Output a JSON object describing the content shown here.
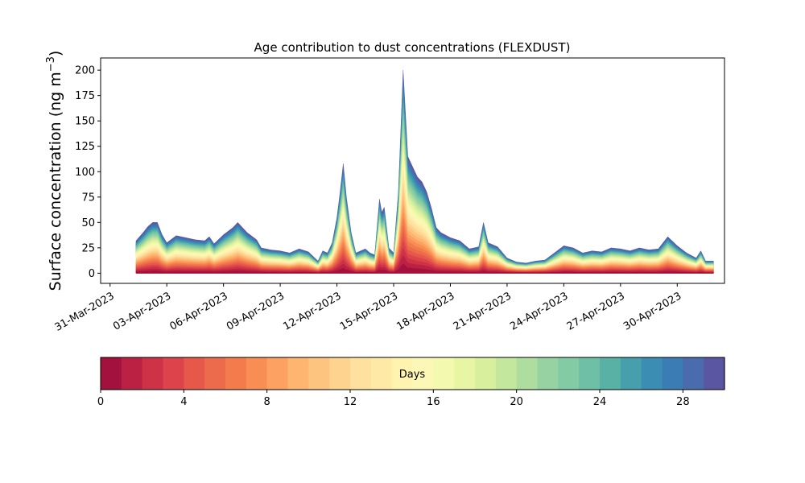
{
  "chart_data": {
    "type": "area",
    "stacked": true,
    "title": "Age contribution to dust concentrations (FLEXDUST)",
    "ylabel_main": "Surface concentration (ng m",
    "ylabel_sup": "−3",
    "ylabel_close": ")",
    "xlabel": "",
    "ylim": [
      -10,
      212
    ],
    "yticks": [
      0,
      25,
      50,
      75,
      100,
      125,
      150,
      175,
      200
    ],
    "xlim": [
      "2023-03-30T12:00",
      "2023-05-02T12:00"
    ],
    "xticks": [
      {
        "date": "2023-03-31",
        "label": "31-Mar-2023"
      },
      {
        "date": "2023-04-03",
        "label": "03-Apr-2023"
      },
      {
        "date": "2023-04-06",
        "label": "06-Apr-2023"
      },
      {
        "date": "2023-04-09",
        "label": "09-Apr-2023"
      },
      {
        "date": "2023-04-12",
        "label": "12-Apr-2023"
      },
      {
        "date": "2023-04-15",
        "label": "15-Apr-2023"
      },
      {
        "date": "2023-04-18",
        "label": "18-Apr-2023"
      },
      {
        "date": "2023-04-21",
        "label": "21-Apr-2023"
      },
      {
        "date": "2023-04-24",
        "label": "24-Apr-2023"
      },
      {
        "date": "2023-04-27",
        "label": "27-Apr-2023"
      },
      {
        "date": "2023-04-30",
        "label": "30-Apr-2023"
      }
    ],
    "grid": false,
    "total_series": [
      [
        "2023-04-01T09:00",
        32
      ],
      [
        "2023-04-01T18:00",
        40
      ],
      [
        "2023-04-02T00:00",
        46
      ],
      [
        "2023-04-02T06:00",
        50
      ],
      [
        "2023-04-02T12:00",
        50
      ],
      [
        "2023-04-02T18:00",
        38
      ],
      [
        "2023-04-03T00:00",
        30
      ],
      [
        "2023-04-03T12:00",
        37
      ],
      [
        "2023-04-04T00:00",
        35
      ],
      [
        "2023-04-04T12:00",
        33
      ],
      [
        "2023-04-05T00:00",
        32
      ],
      [
        "2023-04-05T06:00",
        36
      ],
      [
        "2023-04-05T12:00",
        29
      ],
      [
        "2023-04-06T00:00",
        38
      ],
      [
        "2023-04-06T12:00",
        45
      ],
      [
        "2023-04-06T18:00",
        50
      ],
      [
        "2023-04-07T06:00",
        40
      ],
      [
        "2023-04-07T18:00",
        33
      ],
      [
        "2023-04-08T00:00",
        25
      ],
      [
        "2023-04-08T12:00",
        23
      ],
      [
        "2023-04-09T00:00",
        22
      ],
      [
        "2023-04-09T12:00",
        20
      ],
      [
        "2023-04-10T00:00",
        24
      ],
      [
        "2023-04-10T12:00",
        21
      ],
      [
        "2023-04-11T00:00",
        12
      ],
      [
        "2023-04-11T06:00",
        22
      ],
      [
        "2023-04-11T12:00",
        20
      ],
      [
        "2023-04-11T18:00",
        30
      ],
      [
        "2023-04-12T00:00",
        55
      ],
      [
        "2023-04-12T04:00",
        80
      ],
      [
        "2023-04-12T08:00",
        108
      ],
      [
        "2023-04-12T12:00",
        75
      ],
      [
        "2023-04-12T18:00",
        40
      ],
      [
        "2023-04-13T00:00",
        20
      ],
      [
        "2023-04-13T12:00",
        24
      ],
      [
        "2023-04-13T18:00",
        20
      ],
      [
        "2023-04-14T00:00",
        18
      ],
      [
        "2023-04-14T06:00",
        73
      ],
      [
        "2023-04-14T09:00",
        60
      ],
      [
        "2023-04-14T12:00",
        65
      ],
      [
        "2023-04-14T18:00",
        25
      ],
      [
        "2023-04-15T00:00",
        20
      ],
      [
        "2023-04-15T06:00",
        80
      ],
      [
        "2023-04-15T12:00",
        200
      ],
      [
        "2023-04-15T18:00",
        115
      ],
      [
        "2023-04-16T00:00",
        105
      ],
      [
        "2023-04-16T06:00",
        95
      ],
      [
        "2023-04-16T12:00",
        90
      ],
      [
        "2023-04-16T18:00",
        80
      ],
      [
        "2023-04-17T00:00",
        64
      ],
      [
        "2023-04-17T06:00",
        45
      ],
      [
        "2023-04-17T12:00",
        40
      ],
      [
        "2023-04-18T00:00",
        35
      ],
      [
        "2023-04-18T12:00",
        32
      ],
      [
        "2023-04-19T00:00",
        24
      ],
      [
        "2023-04-19T12:00",
        26
      ],
      [
        "2023-04-19T18:00",
        50
      ],
      [
        "2023-04-20T00:00",
        30
      ],
      [
        "2023-04-20T12:00",
        26
      ],
      [
        "2023-04-21T00:00",
        15
      ],
      [
        "2023-04-21T12:00",
        11
      ],
      [
        "2023-04-22T00:00",
        10
      ],
      [
        "2023-04-22T12:00",
        12
      ],
      [
        "2023-04-23T00:00",
        13
      ],
      [
        "2023-04-23T12:00",
        20
      ],
      [
        "2023-04-24T00:00",
        27
      ],
      [
        "2023-04-24T12:00",
        25
      ],
      [
        "2023-04-25T00:00",
        20
      ],
      [
        "2023-04-25T12:00",
        22
      ],
      [
        "2023-04-26T00:00",
        21
      ],
      [
        "2023-04-26T12:00",
        25
      ],
      [
        "2023-04-27T00:00",
        24
      ],
      [
        "2023-04-27T12:00",
        22
      ],
      [
        "2023-04-28T00:00",
        25
      ],
      [
        "2023-04-28T12:00",
        23
      ],
      [
        "2023-04-29T00:00",
        24
      ],
      [
        "2023-04-29T12:00",
        36
      ],
      [
        "2023-04-30T00:00",
        27
      ],
      [
        "2023-04-30T12:00",
        20
      ],
      [
        "2023-05-01T00:00",
        15
      ],
      [
        "2023-05-01T06:00",
        22
      ],
      [
        "2023-05-01T12:00",
        12
      ],
      [
        "2023-05-01T22:00",
        12
      ]
    ],
    "colorbar": {
      "label": "Days",
      "min": 0,
      "max": 30,
      "bins": 30,
      "ticks": [
        0,
        4,
        8,
        12,
        16,
        20,
        24,
        28
      ]
    },
    "palette": [
      "#a3123f",
      "#bb2142",
      "#cd3246",
      "#dd434a",
      "#e5584a",
      "#ec6b4c",
      "#f47c4c",
      "#f98e55",
      "#fca162",
      "#fdb56f",
      "#fdc47f",
      "#fed390",
      "#fee19e",
      "#fee9a6",
      "#fef3af",
      "#fcf7b6",
      "#f3f9ae",
      "#e8f5a2",
      "#d8ef9d",
      "#c4e79e",
      "#aedd9f",
      "#97d3a2",
      "#82cba5",
      "#6dc0a5",
      "#59b1a6",
      "#479fae",
      "#3b8db4",
      "#3b7cb5",
      "#4a6bae",
      "#5b56a2"
    ]
  }
}
